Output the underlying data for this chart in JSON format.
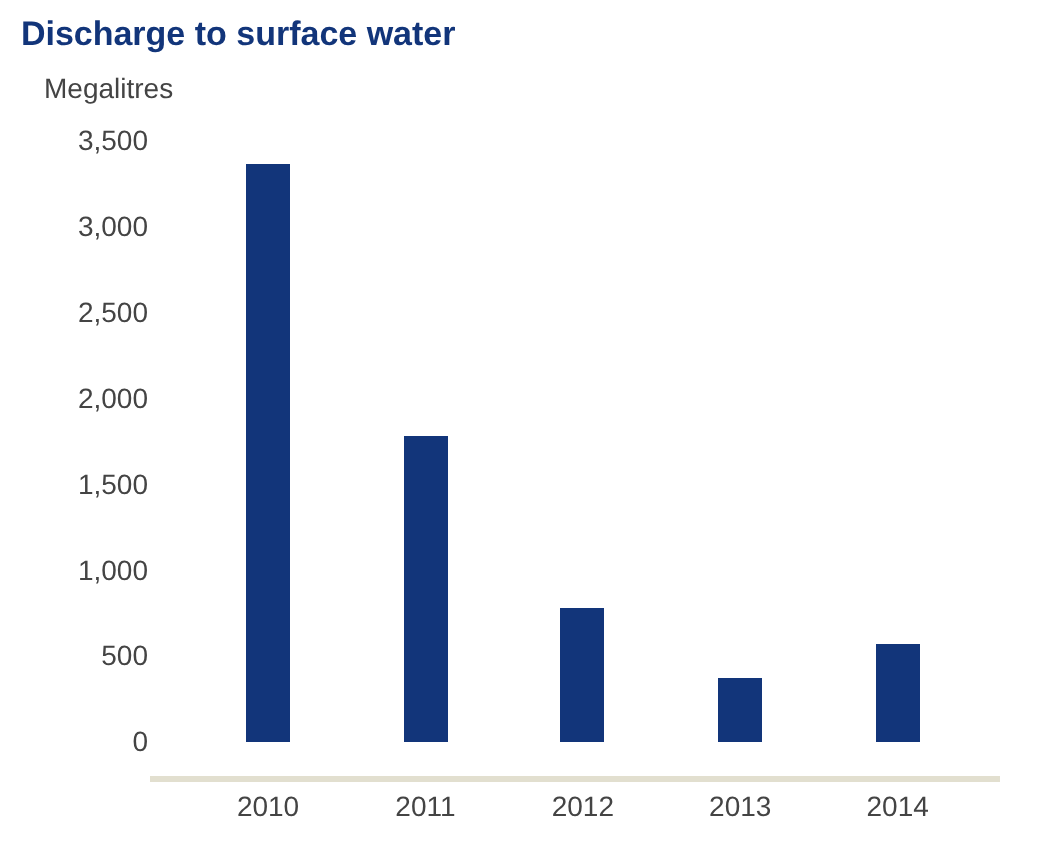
{
  "chart_data": {
    "type": "bar",
    "title": "Discharge to surface water",
    "ylabel": "Megalitres",
    "categories": [
      "2010",
      "2011",
      "2012",
      "2013",
      "2014"
    ],
    "values": [
      3360,
      1780,
      780,
      370,
      570
    ],
    "color": "#12357a",
    "ylim": [
      -200,
      3500
    ],
    "yticks": [
      {
        "value": 0,
        "label": "0"
      },
      {
        "value": 500,
        "label": "500"
      },
      {
        "value": 1000,
        "label": "1,000"
      },
      {
        "value": 1500,
        "label": "1,500"
      },
      {
        "value": 2000,
        "label": "2,000"
      },
      {
        "value": 2500,
        "label": "2,500"
      },
      {
        "value": 3000,
        "label": "3,000"
      },
      {
        "value": 3500,
        "label": "3,500"
      }
    ],
    "legend": false
  }
}
